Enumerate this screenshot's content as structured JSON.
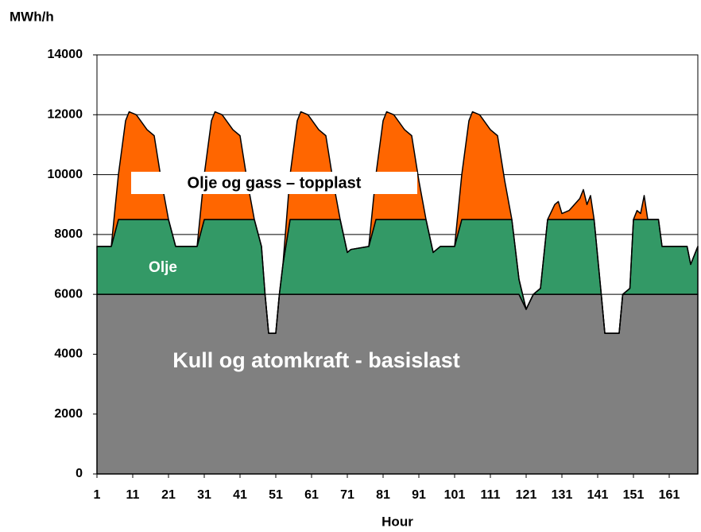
{
  "chart_data": {
    "type": "stacked_area",
    "y_axis_label": "MWh/h",
    "x_axis_label": "Hour",
    "xlim": [
      1,
      169
    ],
    "ylim": [
      0,
      14000
    ],
    "xticks": [
      1,
      11,
      21,
      31,
      41,
      51,
      61,
      71,
      81,
      91,
      101,
      111,
      121,
      131,
      141,
      151,
      161
    ],
    "yticks": [
      0,
      2000,
      4000,
      6000,
      8000,
      10000,
      12000,
      14000
    ],
    "grid": true,
    "x": [
      1,
      5,
      7,
      9,
      10,
      12,
      15,
      17,
      19,
      21,
      23,
      29,
      31,
      33,
      34,
      36,
      39,
      41,
      43,
      45,
      47,
      48,
      49,
      51,
      52,
      53,
      55,
      57,
      58,
      60,
      63,
      65,
      67,
      69,
      71,
      72,
      77,
      79,
      81,
      82,
      84,
      87,
      89,
      91,
      93,
      95,
      97,
      101,
      103,
      105,
      106,
      108,
      111,
      113,
      115,
      117,
      119,
      121,
      123,
      125,
      127,
      129,
      130,
      131,
      133,
      136,
      137,
      138,
      139,
      140,
      142,
      143,
      147,
      148,
      150,
      151,
      152,
      153,
      154,
      155,
      158,
      159,
      166,
      167,
      169
    ],
    "series": [
      {
        "name": "Kull og atomkraft - basislast",
        "color": "#808080",
        "values": [
          6000,
          6000,
          6000,
          6000,
          6000,
          6000,
          6000,
          6000,
          6000,
          6000,
          6000,
          6000,
          6000,
          6000,
          6000,
          6000,
          6000,
          6000,
          6000,
          6000,
          6000,
          6000,
          4700,
          4700,
          6000,
          6000,
          6000,
          6000,
          6000,
          6000,
          6000,
          6000,
          6000,
          6000,
          6000,
          6000,
          6000,
          6000,
          6000,
          6000,
          6000,
          6000,
          6000,
          6000,
          6000,
          6000,
          6000,
          6000,
          6000,
          6000,
          6000,
          6000,
          6000,
          6000,
          6000,
          6000,
          6000,
          5500,
          6000,
          6000,
          6000,
          6000,
          6000,
          6000,
          6000,
          6000,
          6000,
          6000,
          6000,
          6000,
          6000,
          4700,
          4700,
          6000,
          6000,
          6000,
          6000,
          6000,
          6000,
          6000,
          6000,
          6000,
          6000,
          6000,
          6000
        ]
      },
      {
        "name": "Olje",
        "color": "#339966",
        "values": [
          1600,
          1600,
          2500,
          2500,
          2500,
          2500,
          2500,
          2500,
          2500,
          2500,
          1600,
          1600,
          2500,
          2500,
          2500,
          2500,
          2500,
          2500,
          2500,
          2500,
          1600,
          0,
          0,
          0,
          0,
          1000,
          2500,
          2500,
          2500,
          2500,
          2500,
          2500,
          2500,
          2500,
          1400,
          1500,
          1600,
          2500,
          2500,
          2500,
          2500,
          2500,
          2500,
          2500,
          2500,
          1400,
          1600,
          1600,
          2500,
          2500,
          2500,
          2500,
          2500,
          2500,
          2500,
          2500,
          500,
          0,
          0,
          200,
          2500,
          2500,
          2500,
          2500,
          2500,
          2500,
          2500,
          2500,
          2500,
          2500,
          0,
          0,
          0,
          0,
          200,
          2500,
          2500,
          2500,
          2500,
          2500,
          2500,
          1600,
          1600,
          1000,
          1600
        ]
      },
      {
        "name": "Olje og gass – topplast",
        "color": "#ff6600",
        "values": [
          0,
          0,
          1500,
          3300,
          3600,
          3500,
          3000,
          2800,
          1300,
          0,
          0,
          0,
          1500,
          3300,
          3600,
          3500,
          3000,
          2800,
          1300,
          0,
          0,
          0,
          0,
          0,
          0,
          0,
          1500,
          3300,
          3600,
          3500,
          3000,
          2800,
          1300,
          0,
          0,
          0,
          0,
          1500,
          3300,
          3600,
          3500,
          3000,
          2800,
          1300,
          0,
          0,
          0,
          0,
          1500,
          3300,
          3600,
          3500,
          3000,
          2800,
          1300,
          0,
          0,
          0,
          0,
          0,
          0,
          500,
          600,
          200,
          300,
          700,
          1000,
          500,
          800,
          0,
          0,
          0,
          0,
          0,
          0,
          0,
          300,
          200,
          800,
          0,
          0,
          0,
          0,
          0,
          0
        ]
      }
    ]
  }
}
